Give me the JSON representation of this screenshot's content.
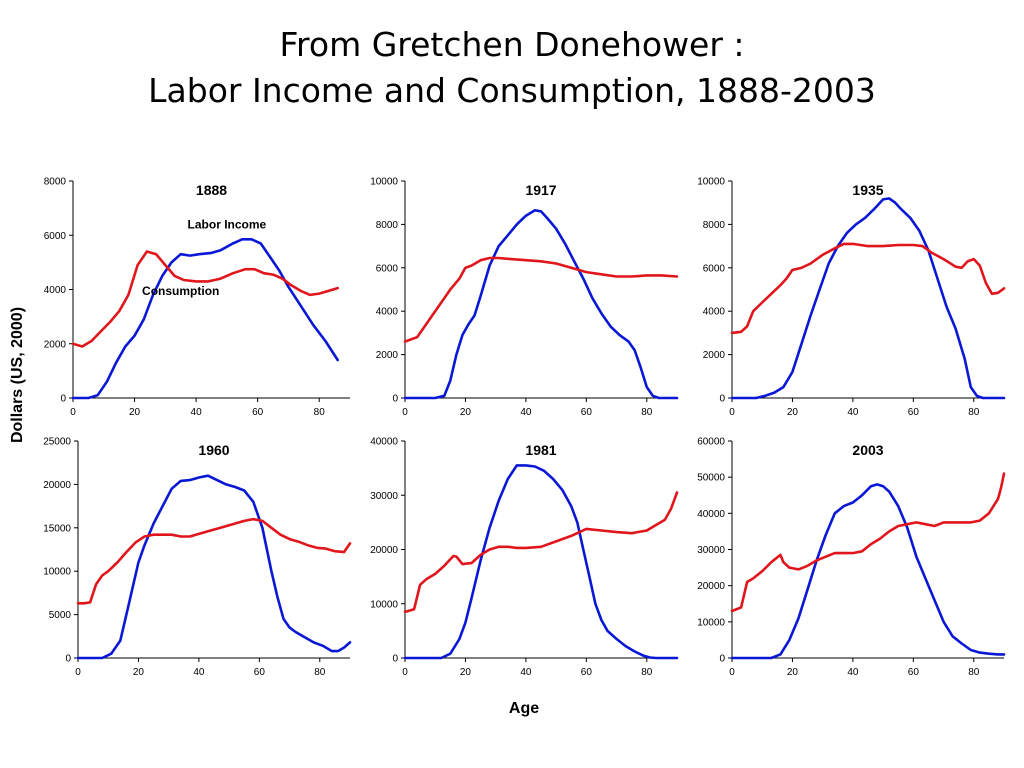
{
  "title": {
    "line1": "From Gretchen Donehower :",
    "line2": "Labor Income and Consumption, 1888-2003"
  },
  "ylabel": "Dollars (US, 2000)",
  "xlabel": "Age",
  "colors": {
    "labor_income": "#0a18d6",
    "consumption": "#e0161c"
  },
  "chart_data": [
    {
      "type": "line",
      "title": "1888",
      "xlim": [
        0,
        90
      ],
      "ylim": [
        0,
        8000
      ],
      "xticks": [
        0,
        20,
        40,
        60,
        80
      ],
      "yticks": [
        0,
        2000,
        4000,
        6000,
        8000
      ],
      "annotations": [
        {
          "text": "Labor Income",
          "x": 50,
          "y": 6250
        },
        {
          "text": "Consumption",
          "x": 35,
          "y": 3800
        }
      ],
      "series": [
        {
          "name": "Labor Income",
          "color": "#0a18d6",
          "x": [
            0,
            5,
            8,
            11,
            14,
            17,
            20,
            23,
            26,
            29,
            32,
            35,
            38,
            41,
            45,
            48,
            52,
            55,
            58,
            61,
            64,
            67,
            70,
            74,
            78,
            82,
            86
          ],
          "y": [
            0,
            0,
            100,
            600,
            1300,
            1900,
            2300,
            2900,
            3800,
            4500,
            5000,
            5300,
            5250,
            5300,
            5350,
            5450,
            5700,
            5850,
            5850,
            5700,
            5200,
            4700,
            4100,
            3400,
            2700,
            2100,
            1400
          ]
        },
        {
          "name": "Consumption",
          "color": "#e0161c",
          "x": [
            0,
            3,
            6,
            9,
            12,
            15,
            18,
            21,
            24,
            27,
            30,
            33,
            36,
            40,
            44,
            48,
            52,
            56,
            59,
            62,
            65,
            68,
            71,
            74,
            77,
            80,
            83,
            86
          ],
          "y": [
            2000,
            1900,
            2100,
            2450,
            2800,
            3200,
            3800,
            4900,
            5400,
            5300,
            4900,
            4500,
            4350,
            4300,
            4300,
            4400,
            4600,
            4750,
            4750,
            4600,
            4550,
            4400,
            4150,
            3950,
            3800,
            3850,
            3950,
            4050
          ]
        }
      ]
    },
    {
      "type": "line",
      "title": "1917",
      "xlim": [
        0,
        90
      ],
      "ylim": [
        0,
        10000
      ],
      "xticks": [
        0,
        20,
        40,
        60,
        80
      ],
      "yticks": [
        0,
        2000,
        4000,
        6000,
        8000,
        10000
      ],
      "series": [
        {
          "name": "Labor Income",
          "color": "#0a18d6",
          "x": [
            0,
            10,
            13,
            15,
            17,
            19,
            21,
            23,
            25,
            28,
            31,
            34,
            37,
            40,
            43,
            45,
            47,
            50,
            53,
            56,
            59,
            62,
            65,
            68,
            71,
            74,
            76,
            78,
            80,
            82,
            84,
            86,
            90
          ],
          "y": [
            0,
            0,
            100,
            800,
            2000,
            2900,
            3400,
            3800,
            4700,
            6100,
            7000,
            7500,
            8000,
            8400,
            8650,
            8600,
            8300,
            7800,
            7100,
            6300,
            5500,
            4600,
            3900,
            3300,
            2900,
            2600,
            2200,
            1400,
            500,
            100,
            0,
            0,
            0
          ]
        },
        {
          "name": "Consumption",
          "color": "#e0161c",
          "x": [
            0,
            2,
            4,
            6,
            9,
            12,
            15,
            18,
            20,
            22,
            25,
            28,
            31,
            35,
            40,
            45,
            50,
            55,
            60,
            65,
            70,
            75,
            80,
            85,
            90
          ],
          "y": [
            2600,
            2700,
            2800,
            3200,
            3800,
            4400,
            5000,
            5500,
            6000,
            6100,
            6350,
            6450,
            6450,
            6400,
            6350,
            6300,
            6200,
            6000,
            5800,
            5700,
            5600,
            5600,
            5650,
            5650,
            5600
          ]
        }
      ]
    },
    {
      "type": "line",
      "title": "1935",
      "xlim": [
        0,
        90
      ],
      "ylim": [
        0,
        10000
      ],
      "xticks": [
        0,
        20,
        40,
        60,
        80
      ],
      "yticks": [
        0,
        2000,
        4000,
        6000,
        8000,
        10000
      ],
      "series": [
        {
          "name": "Labor Income",
          "color": "#0a18d6",
          "x": [
            0,
            8,
            11,
            14,
            17,
            20,
            23,
            26,
            29,
            32,
            35,
            38,
            41,
            44,
            47,
            50,
            52,
            54,
            56,
            59,
            62,
            65,
            68,
            71,
            74,
            77,
            79,
            81,
            83,
            86,
            90
          ],
          "y": [
            0,
            0,
            100,
            250,
            500,
            1200,
            2500,
            3800,
            5000,
            6200,
            7000,
            7600,
            8000,
            8300,
            8700,
            9150,
            9200,
            9000,
            8700,
            8300,
            7700,
            6800,
            5500,
            4200,
            3200,
            1800,
            500,
            100,
            0,
            0,
            0
          ]
        },
        {
          "name": "Consumption",
          "color": "#e0161c",
          "x": [
            0,
            3,
            5,
            7,
            10,
            13,
            16,
            18,
            20,
            23,
            26,
            30,
            34,
            37,
            40,
            45,
            50,
            55,
            60,
            63,
            66,
            70,
            74,
            76,
            78,
            80,
            82,
            84,
            86,
            88,
            90
          ],
          "y": [
            3000,
            3050,
            3300,
            4000,
            4400,
            4800,
            5200,
            5500,
            5900,
            6000,
            6200,
            6600,
            6900,
            7100,
            7100,
            7000,
            7000,
            7050,
            7050,
            7000,
            6700,
            6400,
            6050,
            6000,
            6300,
            6400,
            6100,
            5300,
            4800,
            4850,
            5050
          ]
        }
      ]
    },
    {
      "type": "line",
      "title": "1960",
      "xlim": [
        0,
        90
      ],
      "ylim": [
        0,
        25000
      ],
      "xticks": [
        0,
        20,
        40,
        60,
        80
      ],
      "yticks": [
        0,
        5000,
        10000,
        15000,
        20000,
        25000
      ],
      "series": [
        {
          "name": "Labor Income",
          "color": "#0a18d6",
          "x": [
            0,
            8,
            11,
            14,
            16,
            18,
            20,
            22,
            25,
            28,
            31,
            34,
            37,
            40,
            43,
            46,
            49,
            52,
            55,
            58,
            61,
            64,
            66,
            68,
            70,
            72,
            75,
            78,
            81,
            84,
            86,
            88,
            90
          ],
          "y": [
            0,
            0,
            500,
            2000,
            5000,
            8000,
            11000,
            13000,
            15500,
            17500,
            19500,
            20400,
            20500,
            20800,
            21000,
            20500,
            20000,
            19700,
            19300,
            18000,
            15000,
            10000,
            7000,
            4500,
            3500,
            3000,
            2400,
            1800,
            1400,
            800,
            800,
            1200,
            1800
          ]
        },
        {
          "name": "Consumption",
          "color": "#e0161c",
          "x": [
            0,
            2,
            4,
            6,
            8,
            10,
            13,
            16,
            19,
            22,
            25,
            28,
            31,
            34,
            37,
            40,
            43,
            46,
            49,
            52,
            55,
            58,
            61,
            64,
            67,
            70,
            73,
            76,
            79,
            82,
            85,
            88,
            90
          ],
          "y": [
            6300,
            6300,
            6400,
            8500,
            9500,
            10000,
            11000,
            12200,
            13300,
            14000,
            14200,
            14200,
            14200,
            14000,
            14000,
            14300,
            14600,
            14900,
            15200,
            15500,
            15800,
            16000,
            15800,
            15000,
            14200,
            13700,
            13400,
            13000,
            12700,
            12600,
            12300,
            12200,
            13200
          ]
        }
      ]
    },
    {
      "type": "line",
      "title": "1981",
      "xlim": [
        0,
        90
      ],
      "ylim": [
        0,
        40000
      ],
      "xticks": [
        0,
        20,
        40,
        60,
        80
      ],
      "yticks": [
        0,
        10000,
        20000,
        30000,
        40000
      ],
      "series": [
        {
          "name": "Labor Income",
          "color": "#0a18d6",
          "x": [
            0,
            12,
            15,
            18,
            20,
            22,
            25,
            28,
            31,
            34,
            37,
            40,
            43,
            46,
            49,
            52,
            55,
            57,
            59,
            61,
            63,
            65,
            67,
            70,
            73,
            76,
            79,
            81,
            83,
            86,
            90
          ],
          "y": [
            0,
            0,
            800,
            3500,
            6500,
            11000,
            18000,
            24000,
            29000,
            33000,
            35500,
            35500,
            35300,
            34500,
            33000,
            31000,
            28000,
            25000,
            20000,
            15000,
            10000,
            7000,
            5000,
            3500,
            2200,
            1200,
            400,
            100,
            0,
            0,
            0
          ]
        },
        {
          "name": "Consumption",
          "color": "#e0161c",
          "x": [
            0,
            3,
            5,
            7,
            10,
            13,
            16,
            17,
            19,
            22,
            25,
            28,
            31,
            34,
            37,
            40,
            45,
            50,
            55,
            60,
            65,
            70,
            75,
            80,
            83,
            86,
            88,
            90
          ],
          "y": [
            8500,
            9000,
            13500,
            14500,
            15500,
            17000,
            18800,
            18700,
            17300,
            17500,
            19000,
            20000,
            20500,
            20500,
            20300,
            20300,
            20500,
            21500,
            22500,
            23800,
            23500,
            23200,
            23000,
            23500,
            24500,
            25500,
            27500,
            30500
          ]
        }
      ]
    },
    {
      "type": "line",
      "title": "2003",
      "xlim": [
        0,
        90
      ],
      "ylim": [
        0,
        60000
      ],
      "xticks": [
        0,
        20,
        40,
        60,
        80
      ],
      "yticks": [
        0,
        10000,
        20000,
        30000,
        40000,
        50000,
        60000
      ],
      "series": [
        {
          "name": "Labor Income",
          "color": "#0a18d6",
          "x": [
            0,
            13,
            16,
            19,
            22,
            25,
            28,
            31,
            34,
            37,
            40,
            43,
            46,
            48,
            50,
            52,
            55,
            58,
            61,
            64,
            67,
            70,
            73,
            76,
            79,
            82,
            85,
            88,
            90
          ],
          "y": [
            0,
            0,
            1000,
            5000,
            11000,
            19000,
            27000,
            34000,
            40000,
            42000,
            43000,
            45000,
            47500,
            48000,
            47500,
            46000,
            42000,
            36000,
            28000,
            22000,
            16000,
            10000,
            6000,
            4000,
            2200,
            1500,
            1200,
            1000,
            1000
          ]
        },
        {
          "name": "Consumption",
          "color": "#e0161c",
          "x": [
            0,
            3,
            5,
            7,
            10,
            13,
            16,
            17,
            19,
            22,
            25,
            28,
            31,
            34,
            37,
            40,
            43,
            46,
            49,
            52,
            55,
            58,
            61,
            64,
            67,
            70,
            73,
            76,
            79,
            82,
            85,
            88,
            89,
            90
          ],
          "y": [
            13000,
            14000,
            21000,
            22000,
            24000,
            26500,
            28500,
            26500,
            25000,
            24500,
            25500,
            27000,
            28000,
            29000,
            29000,
            29000,
            29500,
            31500,
            33000,
            35000,
            36500,
            37000,
            37500,
            37000,
            36500,
            37500,
            37500,
            37500,
            37500,
            38000,
            40000,
            44000,
            47000,
            51000
          ]
        }
      ]
    }
  ]
}
